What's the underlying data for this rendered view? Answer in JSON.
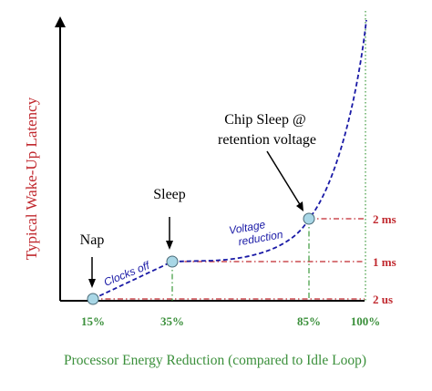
{
  "chart_data": {
    "type": "line",
    "ylabel": "Typical Wake-Up Latency",
    "xlabel": "Processor Energy Reduction (compared to Idle Loop)",
    "x_ticks": [
      "15%",
      "35%",
      "85%",
      "100%"
    ],
    "y_ticks": [
      "2 us",
      "1 ms",
      "2 ms"
    ],
    "points": [
      {
        "label": "Nap",
        "x": 15,
        "y_tick": "2 us"
      },
      {
        "label": "Sleep",
        "x": 35,
        "y_tick": "1 ms"
      },
      {
        "label": "Chip Sleep @\nretention voltage",
        "x": 85,
        "y_tick": "2 ms"
      }
    ],
    "segment_labels": [
      "Clocks off",
      "Voltage\nreduction"
    ],
    "colors": {
      "axis": "#000000",
      "curve": "#1a1aa6",
      "marker_fill": "#a9d7e6",
      "marker_stroke": "#4a6b78",
      "x_text": "#3a8f3a",
      "y_text": "#c0282e",
      "x_guides": "#3c9a3c",
      "y_guides": "#c0282e"
    }
  }
}
